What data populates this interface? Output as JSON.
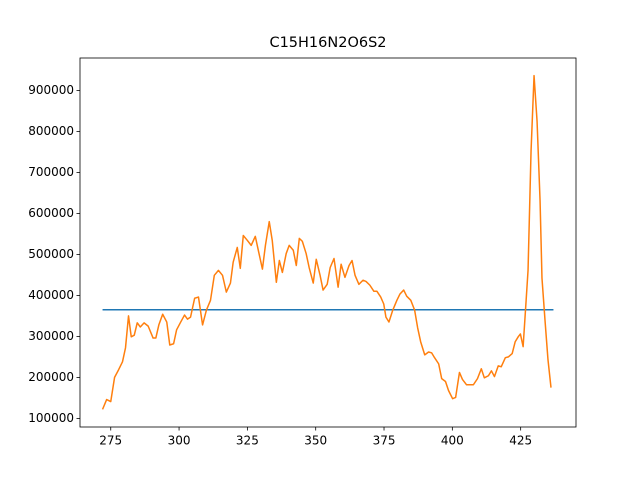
{
  "chart_data": {
    "type": "line",
    "title": "C15H16N2O6S2",
    "xlim": [
      263.75,
      445.25
    ],
    "ylim": [
      79000,
      979000
    ],
    "xticks": [
      275,
      300,
      325,
      350,
      375,
      400,
      425
    ],
    "yticks": [
      100000,
      200000,
      300000,
      400000,
      500000,
      600000,
      700000,
      800000,
      900000
    ],
    "grid": false,
    "series": [
      {
        "color": "#1f77b4",
        "x": [
          272,
          437
        ],
        "values": [
          365000,
          365000
        ]
      },
      {
        "color": "#ff7f0e",
        "x": [
          272,
          273.5,
          275,
          276.4,
          277.9,
          279.3,
          280.4,
          281.5,
          282.5,
          283.6,
          284.7,
          285.8,
          287.2,
          288.7,
          290.5,
          291.5,
          292.6,
          294,
          295.5,
          296.6,
          298,
          299.1,
          300.6,
          302,
          303.1,
          304.2,
          305.7,
          307.1,
          308.6,
          310,
          311.5,
          312.9,
          314.4,
          315.9,
          317.3,
          318.8,
          319.8,
          321.3,
          322.4,
          323.5,
          325,
          326.4,
          327.9,
          329,
          330.5,
          331.6,
          333,
          334.1,
          335.6,
          336.7,
          337.8,
          339.2,
          340.3,
          341.8,
          342.9,
          344,
          345.1,
          346.5,
          347.6,
          349.1,
          350.2,
          351.6,
          352.7,
          354.2,
          355.3,
          356.7,
          358.2,
          359.3,
          360.7,
          362.2,
          363.3,
          364.4,
          365.8,
          367.3,
          368.4,
          369.8,
          371.3,
          372.4,
          373.8,
          374.9,
          375.7,
          376.8,
          378.2,
          379.7,
          380.8,
          382.2,
          383.3,
          384.8,
          386.2,
          387.3,
          388.4,
          389.9,
          391.3,
          392.4,
          393.5,
          395,
          396.1,
          397.5,
          398.6,
          400.1,
          401.2,
          402.6,
          403.7,
          405.2,
          406.6,
          407.7,
          409.2,
          410.6,
          411.7,
          413.2,
          414.3,
          415.4,
          416.8,
          417.9,
          419.4,
          420.5,
          421.9,
          423,
          424.1,
          424.9,
          425.9,
          427,
          427.7,
          428.8,
          429.9,
          431,
          432.1,
          432.8,
          433.9,
          435,
          436.1
        ],
        "values": [
          122000,
          146000,
          141000,
          200000,
          219000,
          238000,
          272000,
          350000,
          299000,
          303000,
          333000,
          323000,
          333000,
          325000,
          296000,
          296000,
          328000,
          354000,
          335000,
          279000,
          282000,
          316000,
          335000,
          352000,
          342000,
          347000,
          393000,
          396000,
          328000,
          364000,
          388000,
          449000,
          461000,
          449000,
          408000,
          430000,
          481000,
          517000,
          466000,
          546000,
          534000,
          522000,
          544000,
          510000,
          464000,
          522000,
          580000,
          534000,
          432000,
          485000,
          456000,
          502000,
          522000,
          510000,
          473000,
          539000,
          532000,
          502000,
          468000,
          430000,
          488000,
          449000,
          413000,
          427000,
          468000,
          490000,
          420000,
          476000,
          444000,
          473000,
          485000,
          449000,
          427000,
          437000,
          434000,
          425000,
          410000,
          410000,
          396000,
          379000,
          347000,
          335000,
          364000,
          388000,
          403000,
          413000,
          398000,
          388000,
          364000,
          321000,
          287000,
          255000,
          262000,
          260000,
          248000,
          233000,
          197000,
          190000,
          168000,
          148000,
          151000,
          212000,
          195000,
          182000,
          182000,
          182000,
          197000,
          221000,
          199000,
          204000,
          216000,
          202000,
          228000,
          226000,
          248000,
          250000,
          258000,
          287000,
          299000,
          306000,
          275000,
          388000,
          461000,
          752000,
          936000,
          825000,
          631000,
          442000,
          340000,
          243000,
          175000
        ]
      }
    ]
  }
}
